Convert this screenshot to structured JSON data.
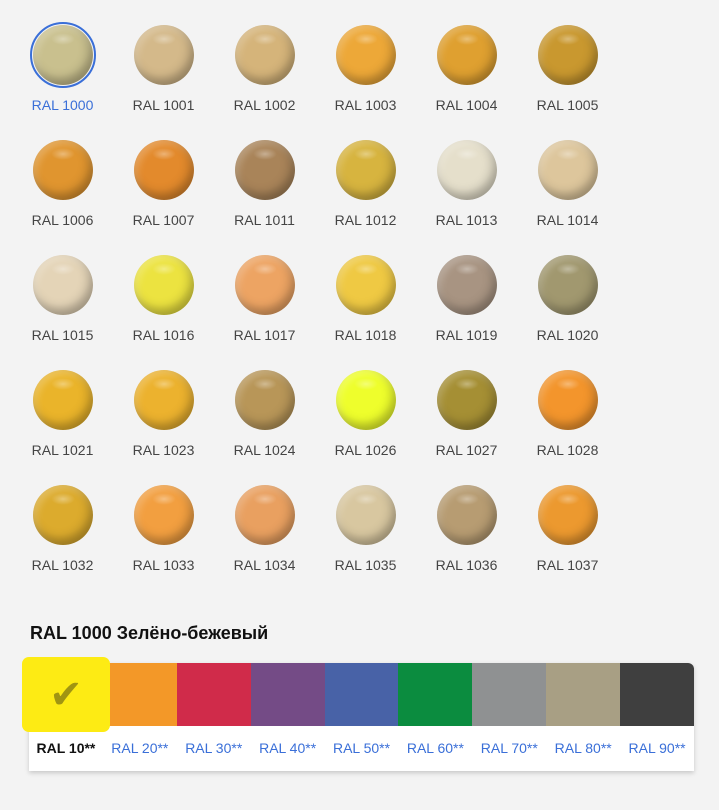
{
  "selected": "RAL 1000",
  "colors": [
    {
      "label": "RAL 1000",
      "color": "#c9c08e"
    },
    {
      "label": "RAL 1001",
      "color": "#d4b98a"
    },
    {
      "label": "RAL 1002",
      "color": "#d5b47a"
    },
    {
      "label": "RAL 1003",
      "color": "#eda838"
    },
    {
      "label": "RAL 1004",
      "color": "#dfa030"
    },
    {
      "label": "RAL 1005",
      "color": "#c9982f"
    },
    {
      "label": "RAL 1006",
      "color": "#e0952f"
    },
    {
      "label": "RAL 1007",
      "color": "#e38a2c"
    },
    {
      "label": "RAL 1011",
      "color": "#a98459"
    },
    {
      "label": "RAL 1012",
      "color": "#d7b43f"
    },
    {
      "label": "RAL 1013",
      "color": "#e5dfcb"
    },
    {
      "label": "RAL 1014",
      "color": "#ddc69c"
    },
    {
      "label": "RAL 1015",
      "color": "#e4d4b7"
    },
    {
      "label": "RAL 1016",
      "color": "#ece340"
    },
    {
      "label": "RAL 1017",
      "color": "#eda463"
    },
    {
      "label": "RAL 1018",
      "color": "#efc943"
    },
    {
      "label": "RAL 1019",
      "color": "#a89482"
    },
    {
      "label": "RAL 1020",
      "color": "#a1986f"
    },
    {
      "label": "RAL 1021",
      "color": "#eab42a"
    },
    {
      "label": "RAL 1023",
      "color": "#ecb22e"
    },
    {
      "label": "RAL 1024",
      "color": "#b89658"
    },
    {
      "label": "RAL 1026",
      "color": "#eefe2c"
    },
    {
      "label": "RAL 1027",
      "color": "#a58f34"
    },
    {
      "label": "RAL 1028",
      "color": "#f3952c"
    },
    {
      "label": "RAL 1032",
      "color": "#dcab2d"
    },
    {
      "label": "RAL 1033",
      "color": "#f29f40"
    },
    {
      "label": "RAL 1034",
      "color": "#e9a060"
    },
    {
      "label": "RAL 1035",
      "color": "#d8c7a0"
    },
    {
      "label": "RAL 1036",
      "color": "#b79c72"
    },
    {
      "label": "RAL 1037",
      "color": "#ec992f"
    }
  ],
  "selected_title": "RAL 1000 Зелёно-бежевый",
  "palette": {
    "active_check": "✔",
    "groups": [
      {
        "label": "RAL 10**",
        "color": "#fdeb14",
        "active": true
      },
      {
        "label": "RAL 20**",
        "color": "#f39828"
      },
      {
        "label": "RAL 30**",
        "color": "#d02b4a"
      },
      {
        "label": "RAL 40**",
        "color": "#744b86"
      },
      {
        "label": "RAL 50**",
        "color": "#4862a7"
      },
      {
        "label": "RAL 60**",
        "color": "#0b8c3f"
      },
      {
        "label": "RAL 70**",
        "color": "#8f9192"
      },
      {
        "label": "RAL 80**",
        "color": "#a89f84"
      },
      {
        "label": "RAL 90**",
        "color": "#3f3f3f"
      }
    ]
  }
}
